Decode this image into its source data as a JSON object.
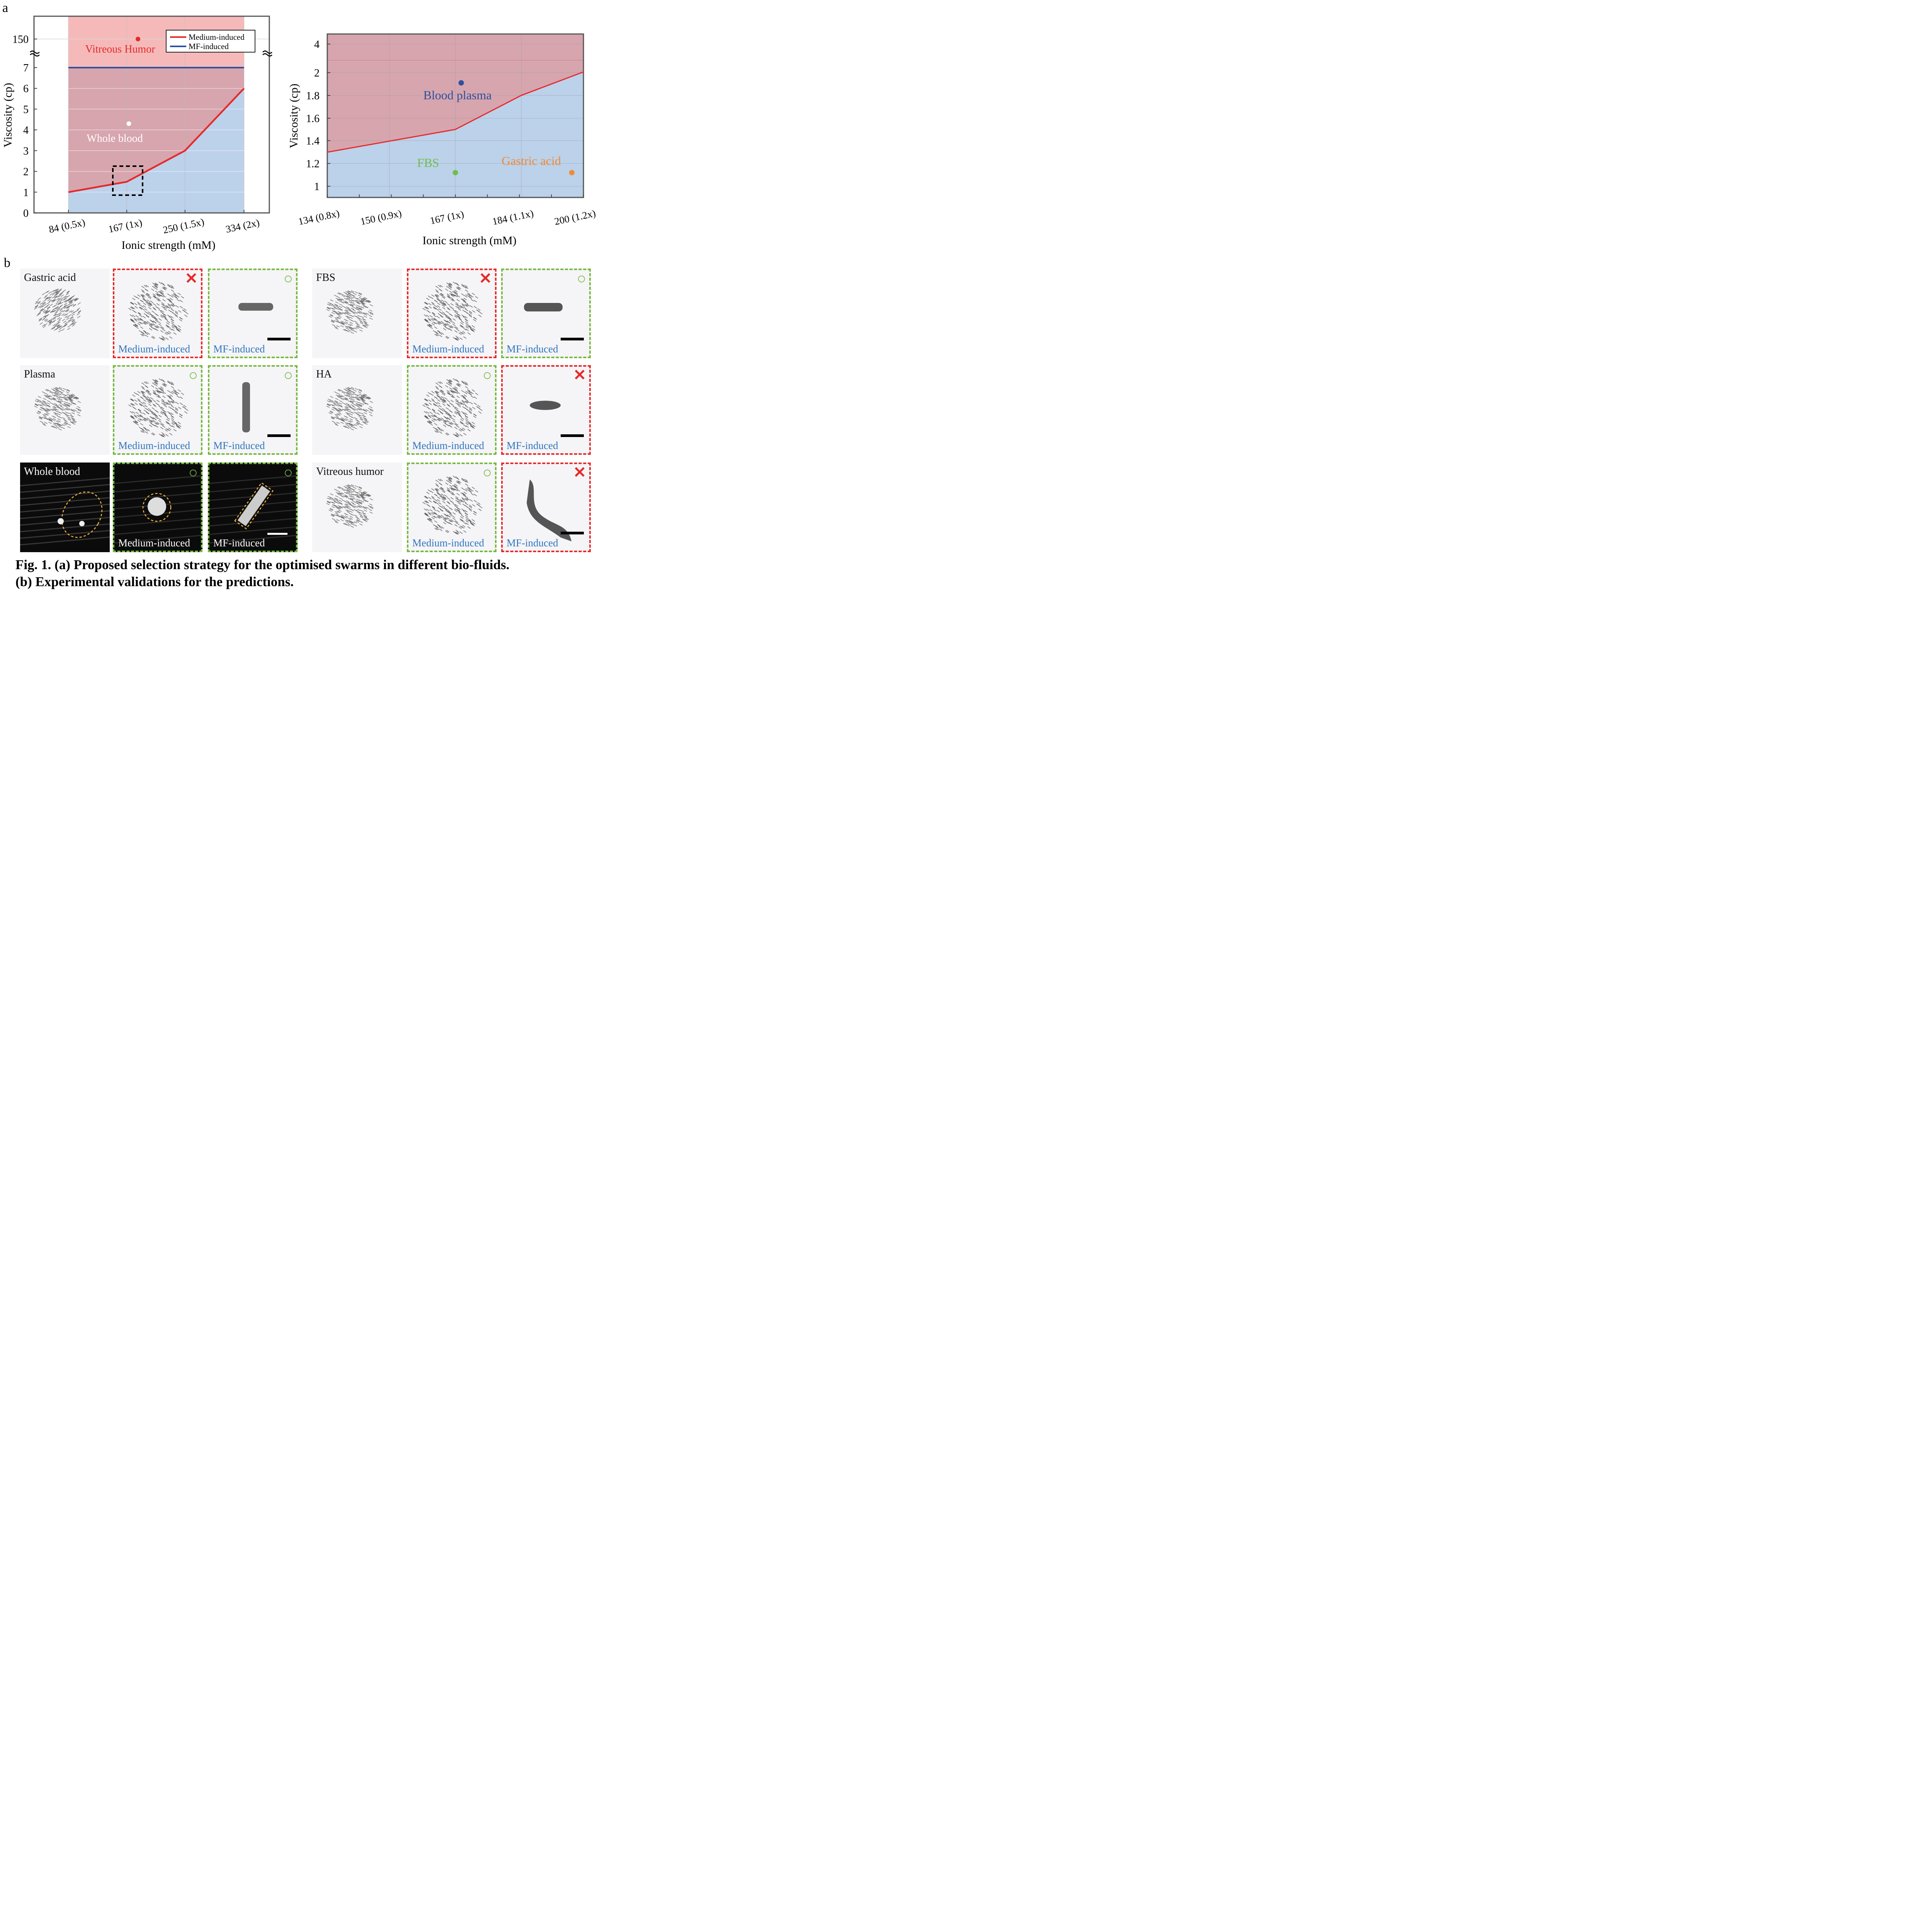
{
  "panel_labels": {
    "a": "a",
    "b": "b"
  },
  "colors": {
    "medium": "#e52a2a",
    "mf": "#2d4f9e",
    "red_region": "#f6b9b9",
    "overlap_region": "#d7a5ae",
    "blue_region": "#bcd1ea",
    "whole_blood": "#ffffff",
    "vitreous": "#e52a2a",
    "blood_plasma": "#2d4f9e",
    "fbs": "#6cc04a",
    "gastric": "#f08a33",
    "ok_frame": "#76b93f",
    "bad_frame": "#e52a2a",
    "label_blue": "#2f77c0",
    "dashed_ellipse": "#f3b43c"
  },
  "chart_data": [
    {
      "type": "line",
      "ylabel": "Viscosity (cp)",
      "xlabel": "Ionic strength (mM)",
      "categories": [
        "84 (0.5x)",
        "167 (1x)",
        "250 (1.5x)",
        "334 (2x)"
      ],
      "x": [
        84,
        167,
        250,
        334
      ],
      "xlim": [
        35,
        370
      ],
      "ylim": [
        0,
        7
      ],
      "ytick_labels": [
        "0",
        "1",
        "2",
        "3",
        "4",
        "5",
        "6",
        "7",
        "150"
      ],
      "axis_break": [
        7,
        150
      ],
      "grid": true,
      "legend": "top-right",
      "series": [
        {
          "name": "Medium-induced",
          "values": [
            1.0,
            1.5,
            3.0,
            6.0
          ]
        },
        {
          "name": "MF-induced",
          "values": [
            7,
            7,
            7,
            7
          ]
        }
      ],
      "points": [
        {
          "label": "Vitreous Humor",
          "x": 183,
          "y": 150,
          "icon": "red-dot"
        },
        {
          "label": "Whole blood",
          "x": 170,
          "y": 4.3,
          "icon": "white-dot"
        }
      ],
      "annotations": [
        {
          "kind": "dashed-box",
          "x": [
            150,
            192
          ],
          "y": [
            0.85,
            2.25
          ]
        }
      ]
    },
    {
      "type": "line",
      "ylabel": "Viscosity (cp)",
      "xlabel": "Ionic strength (mM)",
      "categories": [
        "134 (0.8x)",
        "150 (0.9x)",
        "167 (1x)",
        "184 (1.1x)",
        "200 (1.2x)"
      ],
      "x": [
        134,
        150,
        167,
        184,
        200
      ],
      "xlim": [
        134,
        200
      ],
      "ytick_labels": [
        "1",
        "1.2",
        "1.4",
        "1.6",
        "1.8",
        "2",
        "4"
      ],
      "grid": true,
      "series": [
        {
          "name": "Medium-induced",
          "x": [
            134,
            167,
            184,
            200
          ],
          "values": [
            1.3,
            1.5,
            1.8,
            2.05
          ]
        }
      ],
      "points": [
        {
          "label": "Blood plasma",
          "x": 168.5,
          "y": 1.91
        },
        {
          "label": "FBS",
          "x": 167,
          "y": 1.12
        },
        {
          "label": "Gastric acid",
          "x": 197,
          "y": 1.12
        }
      ]
    }
  ],
  "panel_b": {
    "medium_label": "Medium-induced",
    "mf_label": "MF-induced",
    "rows": [
      {
        "name": "Gastric acid",
        "medium": "✕",
        "mf": "○"
      },
      {
        "name": "FBS",
        "medium": "✕",
        "mf": "○"
      },
      {
        "name": "Plasma",
        "medium": "○",
        "mf": "○"
      },
      {
        "name": "HA",
        "medium": "○",
        "mf": "✕"
      },
      {
        "name": "Whole blood",
        "medium": "○",
        "mf": "○"
      },
      {
        "name": "Vitreous humor",
        "medium": "○",
        "mf": "✕"
      }
    ]
  },
  "caption": {
    "line1": "Fig. 1. (a) Proposed selection strategy for the optimised swarms in different bio-fluids.",
    "line2": "(b) Experimental validations for the predictions."
  }
}
